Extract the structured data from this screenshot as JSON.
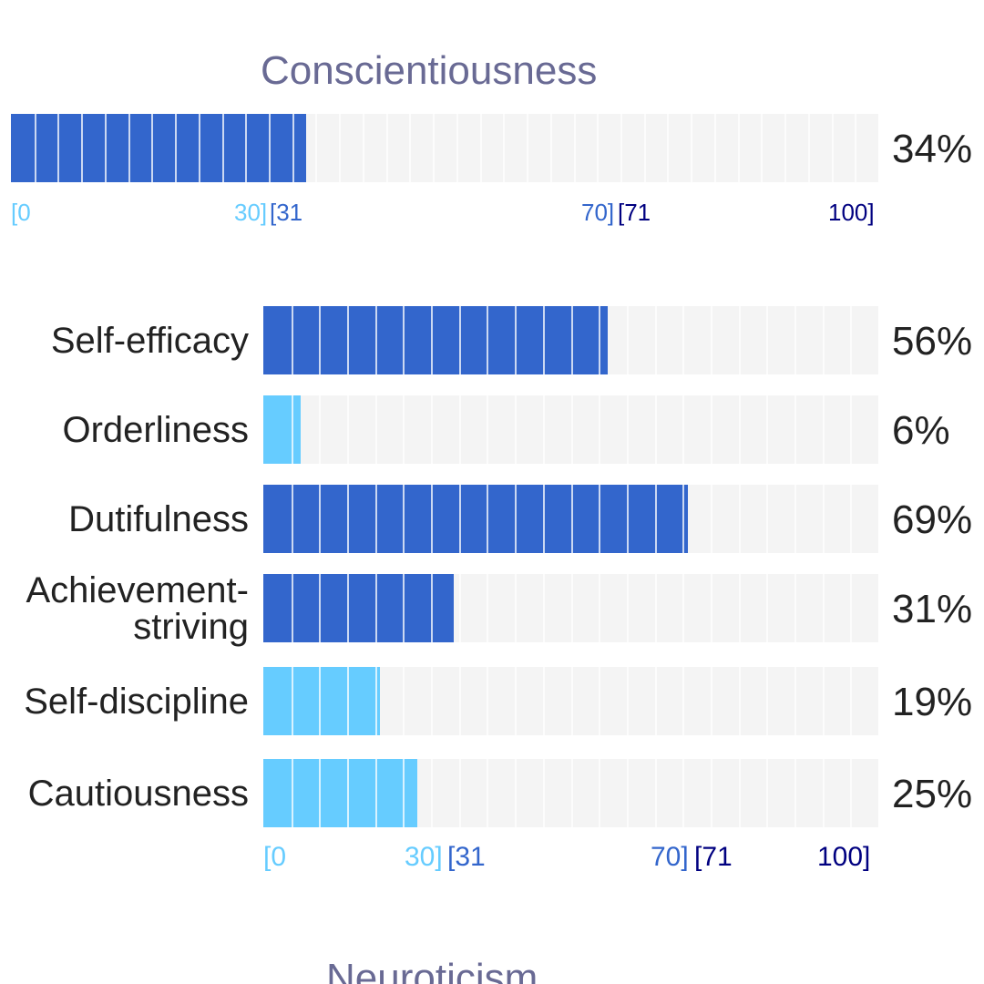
{
  "colors": {
    "low": "#66ccff",
    "mid": "#3366cc",
    "high": "#000080",
    "track": "#f4f4f4",
    "title": "#696a94"
  },
  "domain": {
    "title": "Conscientiousness",
    "percent": 34,
    "percent_label": "34%"
  },
  "facets": [
    {
      "label": "Self-efficacy",
      "percent": 56,
      "percent_label": "56%",
      "band": "mid"
    },
    {
      "label": "Orderliness",
      "percent": 6,
      "percent_label": "6%",
      "band": "low"
    },
    {
      "label": "Dutifulness",
      "percent": 69,
      "percent_label": "69%",
      "band": "mid"
    },
    {
      "label": "Achievement-striving",
      "percent": 31,
      "percent_label": "31%",
      "band": "mid"
    },
    {
      "label": "Self-discipline",
      "percent": 19,
      "percent_label": "19%",
      "band": "low"
    },
    {
      "label": "Cautiousness",
      "percent": 25,
      "percent_label": "25%",
      "band": "low"
    }
  ],
  "scale": {
    "low_start": "[0",
    "low_end": "30]",
    "mid_start": "[31",
    "mid_end": "70]",
    "high_start": "[71",
    "high_end": "100]"
  },
  "next_section": {
    "title": "Neuroticism"
  }
}
